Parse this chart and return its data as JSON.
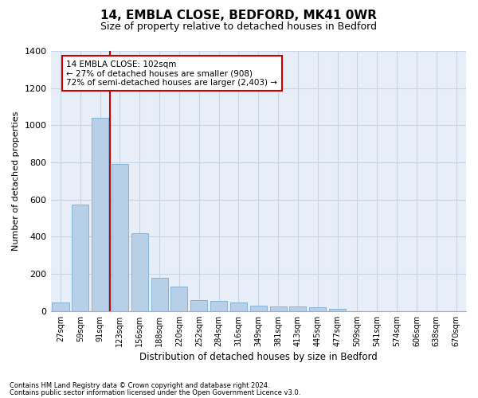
{
  "title1": "14, EMBLA CLOSE, BEDFORD, MK41 0WR",
  "title2": "Size of property relative to detached houses in Bedford",
  "xlabel": "Distribution of detached houses by size in Bedford",
  "ylabel": "Number of detached properties",
  "categories": [
    "27sqm",
    "59sqm",
    "91sqm",
    "123sqm",
    "156sqm",
    "188sqm",
    "220sqm",
    "252sqm",
    "284sqm",
    "316sqm",
    "349sqm",
    "381sqm",
    "413sqm",
    "445sqm",
    "477sqm",
    "509sqm",
    "541sqm",
    "574sqm",
    "606sqm",
    "638sqm",
    "670sqm"
  ],
  "bar_heights": [
    45,
    575,
    1040,
    790,
    420,
    180,
    130,
    60,
    55,
    45,
    30,
    25,
    25,
    18,
    12,
    0,
    0,
    0,
    0,
    0,
    0
  ],
  "bar_color": "#b8cfe8",
  "bar_edge_color": "#7aadd4",
  "grid_color": "#c8d4e4",
  "background_color": "#e8eef8",
  "vline_x": 2.5,
  "vline_color": "#cc0000",
  "annotation_line1": "14 EMBLA CLOSE: 102sqm",
  "annotation_line2": "← 27% of detached houses are smaller (908)",
  "annotation_line3": "72% of semi-detached houses are larger (2,403) →",
  "annotation_box_edgecolor": "#cc0000",
  "ylim": [
    0,
    1400
  ],
  "yticks": [
    0,
    200,
    400,
    600,
    800,
    1000,
    1200,
    1400
  ],
  "footer1": "Contains HM Land Registry data © Crown copyright and database right 2024.",
  "footer2": "Contains public sector information licensed under the Open Government Licence v3.0."
}
